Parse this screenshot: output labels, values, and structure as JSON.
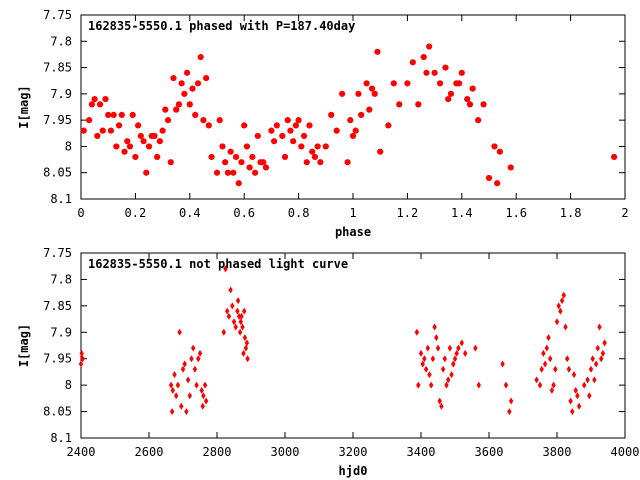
{
  "chart_data": [
    {
      "type": "scatter",
      "title": "162835-5550.1 phased with P=187.40day",
      "xlabel": "phase",
      "ylabel": "I[mag]",
      "xlim": [
        0,
        2
      ],
      "ylim": [
        8.1,
        7.75
      ],
      "y_inverted": true,
      "xticks": [
        "0",
        "0.2",
        "0.4",
        "0.6",
        "0.8",
        "1",
        "1.2",
        "1.4",
        "1.6",
        "1.8",
        "2"
      ],
      "yticks": [
        "7.75",
        "7.8",
        "7.85",
        "7.9",
        "7.95",
        "8",
        "8.05",
        "8.1"
      ],
      "grid": false,
      "marker_color": "#ff0000",
      "series": [
        {
          "x": [
            0.01,
            0.03,
            0.04,
            0.05,
            0.06,
            0.07,
            0.08,
            0.09,
            0.1,
            0.11,
            0.12,
            0.13,
            0.14,
            0.15,
            0.16,
            0.17,
            0.18,
            0.19,
            0.2,
            0.21,
            0.22,
            0.23,
            0.24,
            0.25,
            0.26,
            0.27,
            0.28,
            0.29,
            0.3,
            0.31,
            0.32,
            0.33,
            0.34,
            0.35,
            0.36,
            0.37,
            0.38,
            0.39,
            0.4,
            0.41,
            0.42,
            0.43,
            0.44,
            0.45,
            0.46,
            0.47,
            0.48,
            0.5,
            0.51,
            0.52,
            0.53,
            0.54,
            0.55,
            0.56,
            0.57,
            0.58,
            0.59,
            0.6,
            0.61,
            0.62,
            0.63,
            0.64,
            0.65,
            0.66,
            0.67,
            0.68,
            0.7,
            0.71,
            0.72,
            0.74,
            0.75,
            0.76,
            0.77,
            0.78,
            0.79,
            0.8,
            0.81,
            0.82,
            0.83,
            0.84,
            0.85,
            0.86,
            0.87,
            0.88,
            0.9,
            0.92,
            0.94,
            0.96,
            0.98,
            0.99,
            1.0,
            1.01,
            1.02,
            1.03,
            1.05,
            1.06,
            1.07,
            1.08,
            1.09,
            1.1,
            1.13,
            1.15,
            1.17,
            1.2,
            1.22,
            1.24,
            1.26,
            1.27,
            1.28,
            1.3,
            1.32,
            1.34,
            1.35,
            1.36,
            1.38,
            1.39,
            1.4,
            1.42,
            1.43,
            1.44,
            1.46,
            1.48,
            1.5,
            1.52,
            1.53,
            1.54,
            1.58,
            1.96
          ],
          "y": [
            7.97,
            7.95,
            7.92,
            7.91,
            7.98,
            7.92,
            7.97,
            7.91,
            7.94,
            7.97,
            7.94,
            8.0,
            7.96,
            7.94,
            8.01,
            7.99,
            8.0,
            7.94,
            8.02,
            7.96,
            7.98,
            7.99,
            8.05,
            8.0,
            7.98,
            7.98,
            8.02,
            7.99,
            7.97,
            7.93,
            7.95,
            8.03,
            7.87,
            7.93,
            7.92,
            7.88,
            7.9,
            7.86,
            7.92,
            7.89,
            7.94,
            7.88,
            7.83,
            7.95,
            7.87,
            7.96,
            8.02,
            8.05,
            7.95,
            8.0,
            8.03,
            8.05,
            8.01,
            8.05,
            8.02,
            8.07,
            8.03,
            7.96,
            8.0,
            8.04,
            8.02,
            8.05,
            7.98,
            8.03,
            8.03,
            8.04,
            7.97,
            7.99,
            7.96,
            7.98,
            8.02,
            7.95,
            7.97,
            7.99,
            7.96,
            7.95,
            8.0,
            7.98,
            8.03,
            7.96,
            8.01,
            8.02,
            8.0,
            8.03,
            8.0,
            7.94,
            7.97,
            7.9,
            8.03,
            7.95,
            7.98,
            7.97,
            7.9,
            7.94,
            7.88,
            7.93,
            7.89,
            7.9,
            7.82,
            8.01,
            7.96,
            7.88,
            7.92,
            7.88,
            7.84,
            7.92,
            7.83,
            7.86,
            7.81,
            7.86,
            7.88,
            7.85,
            7.91,
            7.9,
            7.88,
            7.88,
            7.86,
            7.91,
            7.92,
            7.89,
            7.95,
            7.92,
            8.06,
            8.0,
            8.07,
            8.01,
            8.04,
            8.02
          ],
          "marker": "filled-circle"
        }
      ]
    },
    {
      "type": "scatter",
      "title": "162835-5550.1 not phased light curve",
      "xlabel": "hjd0",
      "ylabel": "I[mag]",
      "xlim": [
        2400,
        4000
      ],
      "ylim": [
        8.1,
        7.75
      ],
      "y_inverted": true,
      "xticks": [
        "2400",
        "2600",
        "2800",
        "3000",
        "3200",
        "3400",
        "3600",
        "3800",
        "4000"
      ],
      "yticks": [
        "7.75",
        "7.8",
        "7.85",
        "7.9",
        "7.95",
        "8",
        "8.05",
        "8.1"
      ],
      "grid": false,
      "marker_color": "#ff0000",
      "series": [
        {
          "x": [
            2400,
            2402,
            2405,
            2665,
            2668,
            2670,
            2675,
            2680,
            2685,
            2690,
            2695,
            2700,
            2705,
            2710,
            2715,
            2720,
            2725,
            2730,
            2735,
            2740,
            2745,
            2750,
            2755,
            2758,
            2760,
            2765,
            2768,
            2820,
            2825,
            2830,
            2835,
            2840,
            2845,
            2850,
            2855,
            2860,
            2862,
            2865,
            2868,
            2870,
            2872,
            2875,
            2878,
            2880,
            2882,
            2885,
            2888,
            2890,
            3388,
            3392,
            3400,
            3405,
            3410,
            3415,
            3420,
            3425,
            3430,
            3435,
            3440,
            3445,
            3450,
            3455,
            3460,
            3465,
            3470,
            3475,
            3480,
            3485,
            3490,
            3495,
            3500,
            3505,
            3510,
            3520,
            3530,
            3560,
            3570,
            3640,
            3650,
            3660,
            3665,
            3740,
            3750,
            3755,
            3760,
            3765,
            3770,
            3775,
            3780,
            3785,
            3790,
            3795,
            3800,
            3805,
            3810,
            3815,
            3820,
            3825,
            3830,
            3835,
            3840,
            3845,
            3850,
            3855,
            3860,
            3865,
            3880,
            3890,
            3895,
            3900,
            3905,
            3910,
            3915,
            3920,
            3925,
            3930,
            3935,
            3940
          ],
          "y": [
            7.96,
            7.94,
            7.95,
            8.0,
            8.05,
            8.01,
            7.98,
            8.02,
            8.0,
            7.9,
            8.04,
            7.97,
            7.96,
            8.05,
            7.99,
            8.02,
            7.95,
            7.93,
            7.97,
            8.0,
            7.95,
            7.94,
            8.01,
            8.04,
            8.02,
            8.0,
            8.03,
            7.9,
            7.78,
            7.86,
            7.87,
            7.82,
            7.85,
            7.88,
            7.89,
            7.86,
            7.84,
            7.87,
            7.9,
            7.88,
            7.87,
            7.89,
            7.94,
            7.86,
            7.91,
            7.93,
            7.92,
            7.95,
            7.9,
            8.0,
            7.94,
            7.96,
            7.95,
            7.97,
            7.93,
            7.98,
            8.0,
            7.95,
            7.89,
            7.91,
            7.93,
            8.03,
            8.04,
            7.97,
            7.95,
            8.0,
            7.99,
            7.93,
            7.98,
            7.96,
            7.95,
            7.94,
            7.93,
            7.92,
            7.94,
            7.93,
            8.0,
            7.96,
            8.0,
            8.05,
            8.03,
            7.99,
            8.0,
            7.97,
            7.94,
            7.96,
            7.93,
            7.91,
            7.95,
            8.01,
            8.0,
            7.97,
            7.88,
            7.85,
            7.86,
            7.84,
            7.83,
            7.89,
            7.95,
            7.97,
            8.03,
            8.05,
            7.98,
            8.01,
            8.02,
            8.04,
            8.0,
            7.99,
            8.02,
            7.97,
            7.95,
            7.99,
            7.96,
            7.93,
            7.89,
            7.95,
            7.94,
            7.92
          ],
          "marker": "filled-diamond"
        }
      ]
    }
  ]
}
